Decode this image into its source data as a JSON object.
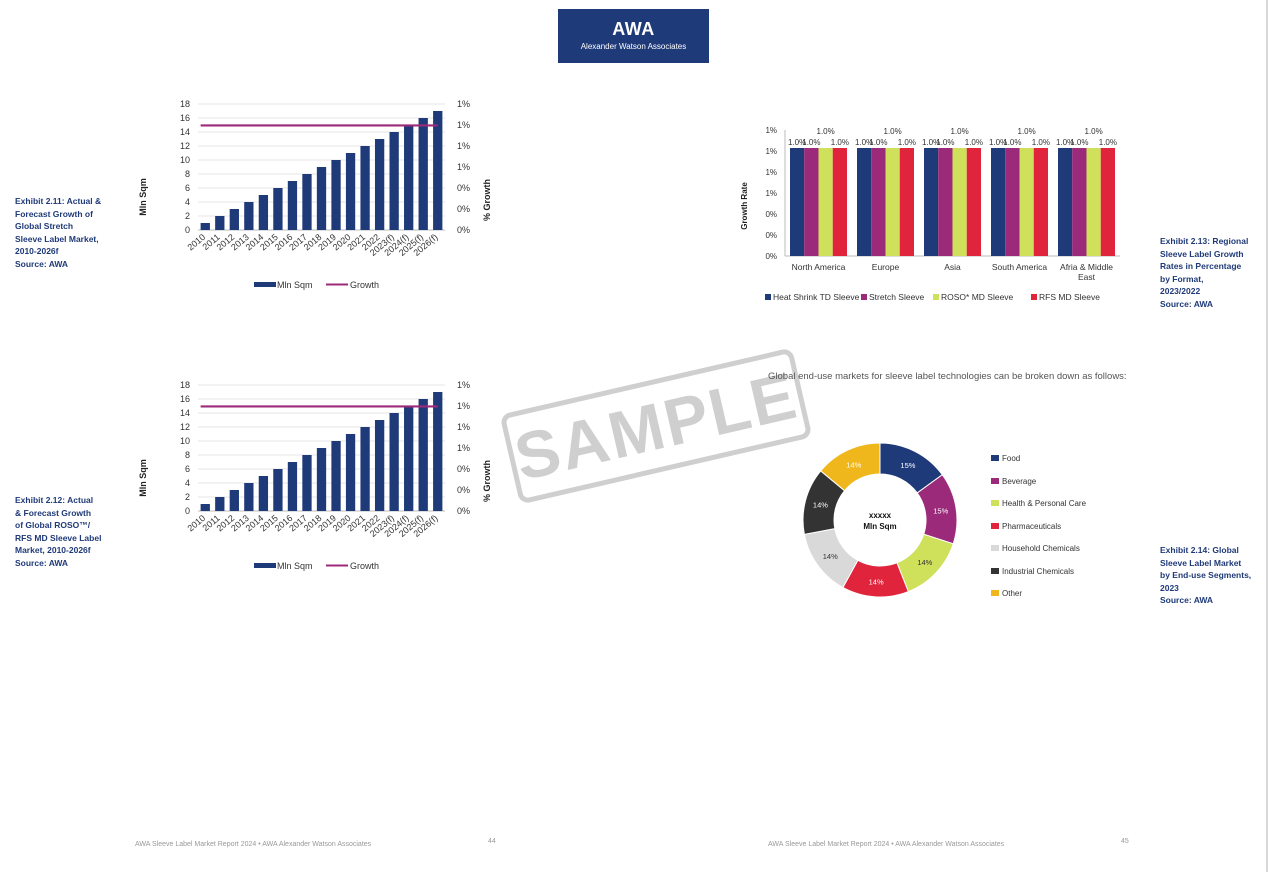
{
  "header": {
    "logo_title": "AWA",
    "logo_subtitle": "Alexander Watson Associates"
  },
  "exhibit_211": {
    "caption_lines": [
      "Exhibit 2.11: Actual &",
      "Forecast Growth of",
      "Global Stretch",
      "Sleeve Label Market,",
      "2010-2026f"
    ],
    "source": "Source: AWA"
  },
  "exhibit_212": {
    "caption_lines": [
      "Exhibit 2.12: Actual",
      "& Forecast Growth",
      "of Global ROSO™/",
      "RFS MD Sleeve Label",
      "Market, 2010-2026f"
    ],
    "source": "Source: AWA"
  },
  "exhibit_213": {
    "caption_lines": [
      "Exhibit 2.13: Regional",
      "Sleeve Label Growth",
      "Rates in Percentage",
      "by Format,",
      "2023/2022"
    ],
    "source": "Source: AWA"
  },
  "exhibit_214": {
    "caption_lines": [
      "Exhibit 2.14: Global",
      "Sleeve Label Market",
      "by End-use Segments,",
      "2023"
    ],
    "source": "Source: AWA"
  },
  "intro_text": "Global end-use markets for sleeve label technologies can be broken down as follows:",
  "watermark": "SAMPLE",
  "footer": {
    "left_text": "AWA Sleeve Label Market Report 2024 • AWA Alexander Watson Associates",
    "left_page": "44",
    "right_text": "AWA Sleeve Label Market Report 2024 • AWA Alexander Watson Associates",
    "right_page": "45"
  },
  "colors": {
    "navy": "#1f3a78",
    "magenta": "#9c2a7a",
    "lime": "#cfe05a",
    "red": "#e0243c",
    "grey": "#d9d9d9",
    "dark": "#333333",
    "gold": "#efb71c"
  },
  "chart_data": [
    {
      "type": "bar",
      "categories": [
        "2010",
        "2011",
        "2012",
        "2013",
        "2014",
        "2015",
        "2016",
        "2017",
        "2018",
        "2019",
        "2020",
        "2021",
        "2022",
        "2023(f)",
        "2024(f)",
        "2025(f)",
        "2026(f)"
      ],
      "series": [
        {
          "name": "Mln Sqm",
          "type": "bar",
          "axis": "left",
          "values": [
            1,
            2,
            3,
            4,
            5,
            6,
            7,
            8,
            9,
            10,
            11,
            12,
            13,
            14,
            15,
            16,
            17
          ]
        },
        {
          "name": "Growth",
          "type": "line",
          "axis": "right",
          "values": [
            0.01,
            0.01,
            0.01,
            0.01,
            0.01,
            0.01,
            0.01,
            0.01,
            0.01,
            0.01,
            0.01,
            0.01,
            0.01,
            0.01,
            0.01,
            0.01,
            0.01
          ]
        }
      ],
      "ylabel": "Mln Sqm",
      "y2label": "% Growth",
      "ylim": [
        0,
        18
      ],
      "yticks": [
        "0",
        "2",
        "4",
        "6",
        "8",
        "10",
        "12",
        "14",
        "16",
        "18"
      ],
      "y2ticks": [
        "0%",
        "0%",
        "0%",
        "1%",
        "1%",
        "1%",
        "1%"
      ],
      "legend": "bottom"
    },
    {
      "type": "bar",
      "categories": [
        "2010",
        "2011",
        "2012",
        "2013",
        "2014",
        "2015",
        "2016",
        "2017",
        "2018",
        "2019",
        "2020",
        "2021",
        "2022",
        "2023(f)",
        "2024(f)",
        "2025(f)",
        "2026(f)"
      ],
      "series": [
        {
          "name": "Mln Sqm",
          "type": "bar",
          "axis": "left",
          "values": [
            1,
            2,
            3,
            4,
            5,
            6,
            7,
            8,
            9,
            10,
            11,
            12,
            13,
            14,
            15,
            16,
            17
          ]
        },
        {
          "name": "Growth",
          "type": "line",
          "axis": "right",
          "values": [
            0.01,
            0.01,
            0.01,
            0.01,
            0.01,
            0.01,
            0.01,
            0.01,
            0.01,
            0.01,
            0.01,
            0.01,
            0.01,
            0.01,
            0.01,
            0.01,
            0.01
          ]
        }
      ],
      "ylabel": "Mln Sqm",
      "y2label": "% Growth",
      "ylim": [
        0,
        18
      ],
      "yticks": [
        "0",
        "2",
        "4",
        "6",
        "8",
        "10",
        "12",
        "14",
        "16",
        "18"
      ],
      "y2ticks": [
        "0%",
        "0%",
        "0%",
        "1%",
        "1%",
        "1%",
        "1%"
      ],
      "legend": "bottom"
    },
    {
      "type": "bar",
      "categories": [
        "North America",
        "Europe",
        "Asia",
        "South America",
        "Afria & Middle East"
      ],
      "series": [
        {
          "name": "Heat Shrink TD Sleeve",
          "values": [
            1.0,
            1.0,
            1.0,
            1.0,
            1.0
          ],
          "labels": [
            "1.0%",
            "1.0%",
            "1.0%",
            "1.0%",
            "1.0%"
          ]
        },
        {
          "name": "Stretch Sleeve",
          "values": [
            1.0,
            1.0,
            1.0,
            1.0,
            1.0
          ],
          "labels": [
            "1.0%",
            "1.0%",
            "1.0%",
            "1.0%",
            "1.0%"
          ]
        },
        {
          "name": "ROSO*  MD Sleeve",
          "values": [
            1.0,
            1.0,
            1.0,
            1.0,
            1.0
          ],
          "labels": [
            "1.0%",
            "1.0%",
            "1.0%",
            "1.0%",
            "1.0%"
          ]
        },
        {
          "name": "RFS MD Sleeve",
          "values": [
            1.0,
            1.0,
            1.0,
            1.0,
            1.0
          ],
          "labels": [
            "1.0%",
            "1.0%",
            "1.0%",
            "1.0%",
            "1.0%"
          ]
        }
      ],
      "ylabel": "Growth Rate",
      "yticks": [
        "0%",
        "0%",
        "0%",
        "1%",
        "1%",
        "1%",
        "1%"
      ],
      "legend": "bottom"
    },
    {
      "type": "pie",
      "donut": true,
      "center_label": [
        "xxxxx",
        "Mln Sqm"
      ],
      "slices": [
        {
          "name": "Food",
          "value": 15,
          "label": "15%"
        },
        {
          "name": "Beverage",
          "value": 15,
          "label": "15%"
        },
        {
          "name": "Health & Personal Care",
          "value": 14,
          "label": "14%"
        },
        {
          "name": "Pharmaceuticals",
          "value": 14,
          "label": "14%"
        },
        {
          "name": "Household Chemicals",
          "value": 14,
          "label": "14%"
        },
        {
          "name": "Industrial Chemicals",
          "value": 14,
          "label": "14%"
        },
        {
          "name": "Other",
          "value": 14,
          "label": "14%"
        }
      ],
      "legend": "right"
    }
  ]
}
